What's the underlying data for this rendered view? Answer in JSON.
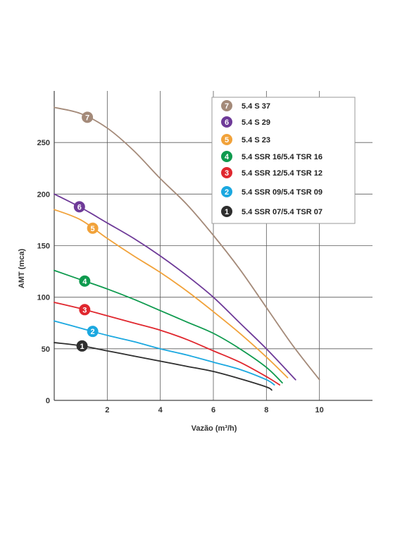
{
  "chart_data": {
    "type": "line",
    "title": "",
    "xlabel": "Vazão (m³/h)",
    "ylabel": "AMT (mca)",
    "xlim": [
      0,
      12
    ],
    "ylim": [
      0,
      300
    ],
    "x_ticks": [
      2,
      4,
      6,
      8,
      10
    ],
    "x_tick_labels": [
      "2",
      "4",
      "6",
      "8",
      "10"
    ],
    "y_ticks": [
      0,
      50,
      100,
      150,
      200,
      250
    ],
    "y_tick_labels": [
      "0",
      "50",
      "100",
      "150",
      "200",
      "250"
    ],
    "grid": true,
    "legend_position": "top-right",
    "series": [
      {
        "id": "7",
        "name": "5.4 S 37",
        "color": "#a48a79",
        "x": [
          0,
          1,
          2,
          3,
          4,
          5,
          6,
          7,
          8,
          9,
          10
        ],
        "y": [
          284,
          278,
          264,
          242,
          215,
          190,
          160,
          127,
          90,
          53,
          20
        ],
        "badge_x": 1.25
      },
      {
        "id": "6",
        "name": "5.4 S 29",
        "color": "#6e3a98",
        "x": [
          0,
          1,
          2,
          3,
          4,
          5,
          6,
          7,
          8,
          9.1
        ],
        "y": [
          200,
          187,
          172,
          157,
          140,
          121,
          100,
          75,
          50,
          20
        ],
        "badge_x": 0.95
      },
      {
        "id": "5",
        "name": "5.4 S 23",
        "color": "#f1a23a",
        "x": [
          0,
          1,
          2,
          3,
          4,
          5,
          6,
          7,
          8,
          8.8
        ],
        "y": [
          185,
          175,
          157,
          140,
          124,
          106,
          86,
          65,
          42,
          22
        ],
        "badge_x": 1.45
      },
      {
        "id": "4",
        "name": "5.4 SSR 16/5.4 TSR 16",
        "color": "#0e9a4e",
        "x": [
          0,
          1,
          2,
          3,
          4,
          5,
          6,
          7,
          8,
          8.6
        ],
        "y": [
          126,
          117,
          108,
          98,
          87,
          76,
          65,
          50,
          32,
          17
        ],
        "badge_x": 1.15
      },
      {
        "id": "3",
        "name": "5.4 SSR 12/5.4 TSR 12",
        "color": "#e0272e",
        "x": [
          0,
          1,
          2,
          3,
          4,
          5,
          6,
          7,
          8,
          8.5
        ],
        "y": [
          95,
          89,
          82,
          75,
          68,
          59,
          48,
          37,
          23,
          15
        ],
        "badge_x": 1.15
      },
      {
        "id": "2",
        "name": "5.4 SSR 09/5.4 TSR 09",
        "color": "#1ba8e0",
        "x": [
          0,
          1,
          2,
          3,
          4,
          5,
          6,
          7,
          8,
          8.3
        ],
        "y": [
          77,
          70,
          63,
          57,
          50,
          44,
          37,
          30,
          20,
          15
        ],
        "badge_x": 1.45
      },
      {
        "id": "1",
        "name": "5.4 SSR 07/5.4 TSR 07",
        "color": "#2e2e2e",
        "x": [
          0,
          1,
          2,
          3,
          4,
          5,
          6,
          7,
          8,
          8.2
        ],
        "y": [
          56,
          53,
          48,
          43,
          38,
          33,
          28,
          21,
          13,
          10
        ],
        "badge_x": 1.05
      }
    ]
  },
  "legend_order": [
    "7",
    "6",
    "5",
    "4",
    "3",
    "2",
    "1"
  ]
}
